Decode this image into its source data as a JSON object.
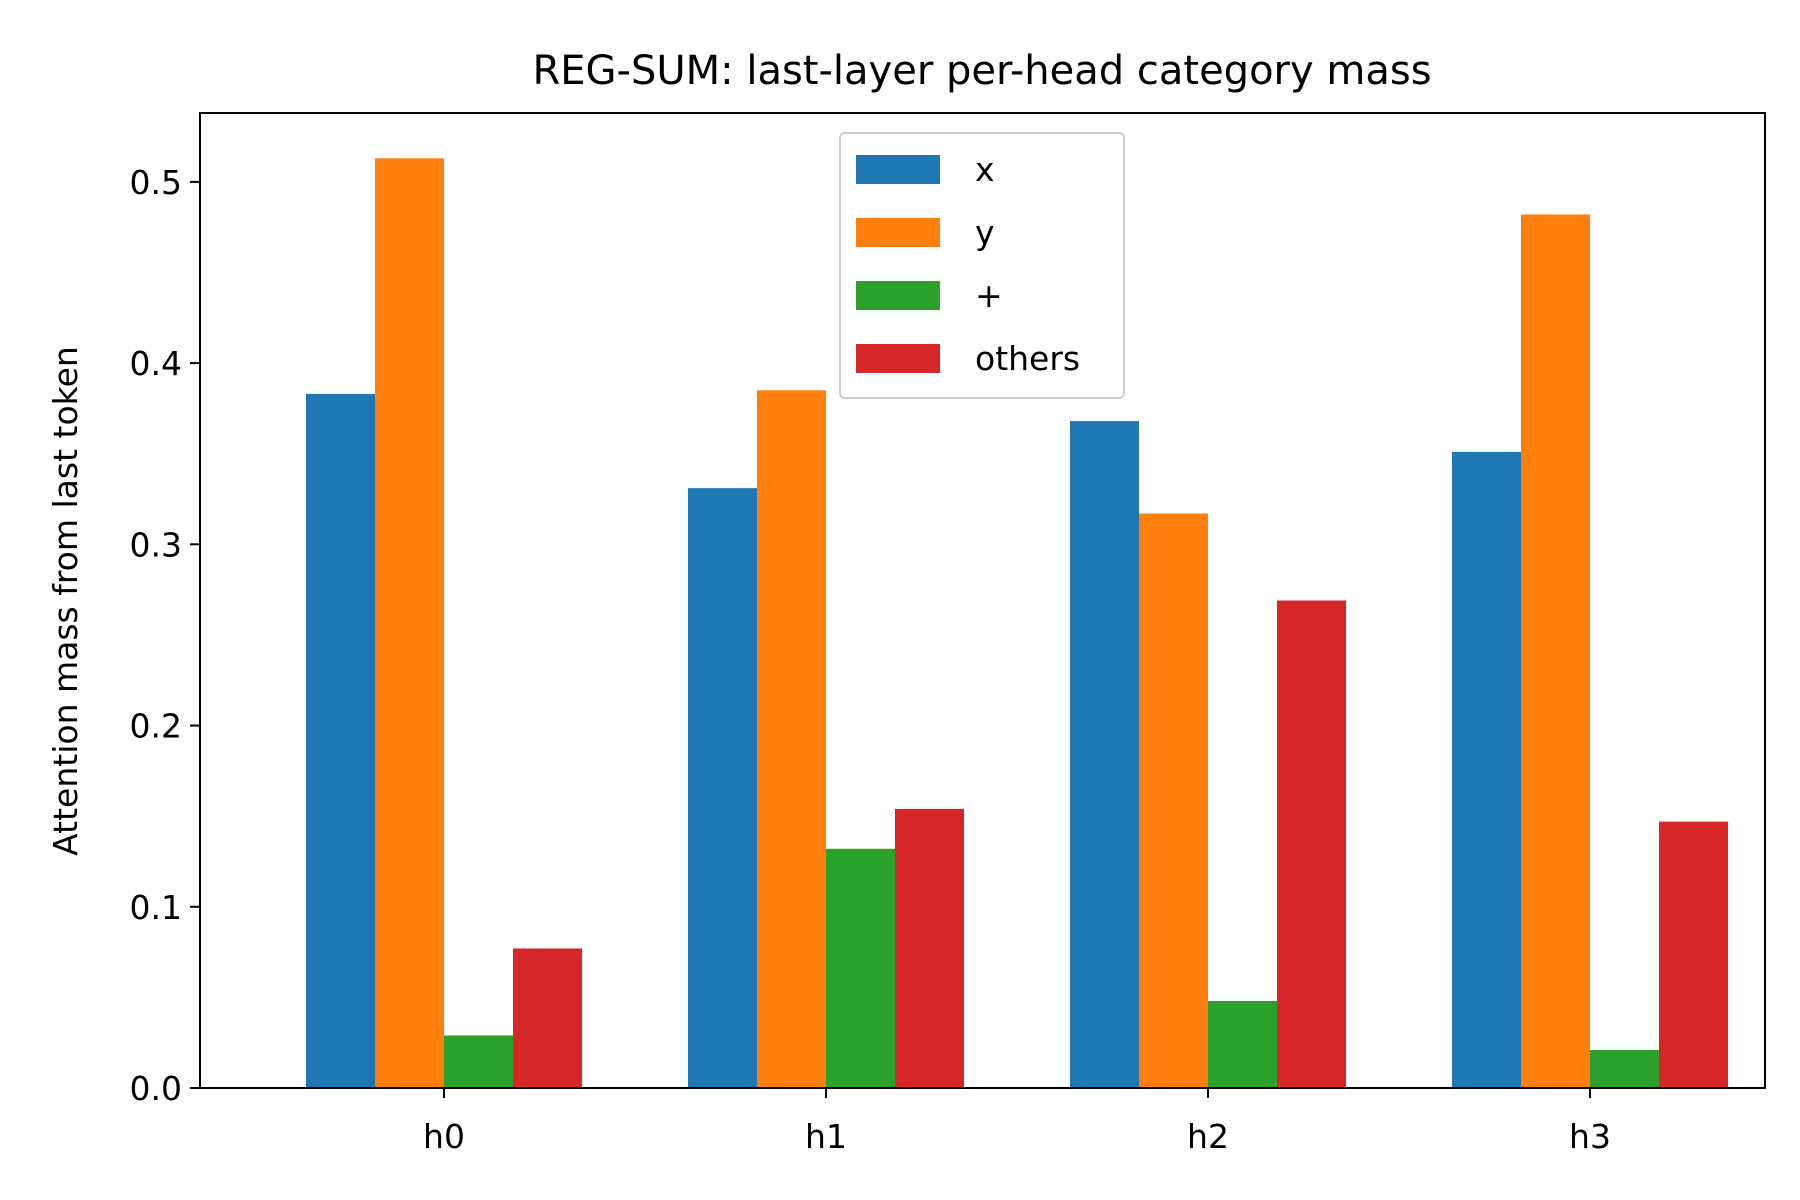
{
  "chart_data": {
    "type": "bar",
    "title": "REG-SUM: last-layer per-head category mass",
    "xlabel": "",
    "ylabel": "Attention mass from last token",
    "categories": [
      "h0",
      "h1",
      "h2",
      "h3"
    ],
    "series": [
      {
        "name": "x",
        "color": "#1f77b4",
        "values": [
          0.383,
          0.331,
          0.368,
          0.351
        ]
      },
      {
        "name": "y",
        "color": "#ff7f0e",
        "values": [
          0.513,
          0.385,
          0.317,
          0.482
        ]
      },
      {
        "name": "+",
        "color": "#2ca02c",
        "values": [
          0.029,
          0.132,
          0.048,
          0.021
        ]
      },
      {
        "name": "others",
        "color": "#d62728",
        "values": [
          0.077,
          0.154,
          0.269,
          0.147
        ]
      }
    ],
    "ylim": [
      0,
      0.538
    ],
    "yticks": [
      0.0,
      0.1,
      0.2,
      0.3,
      0.4,
      0.5
    ],
    "ytick_labels": [
      "0.0",
      "0.1",
      "0.2",
      "0.3",
      "0.4",
      "0.5"
    ],
    "grid": false,
    "legend_position": "upper-center"
  }
}
